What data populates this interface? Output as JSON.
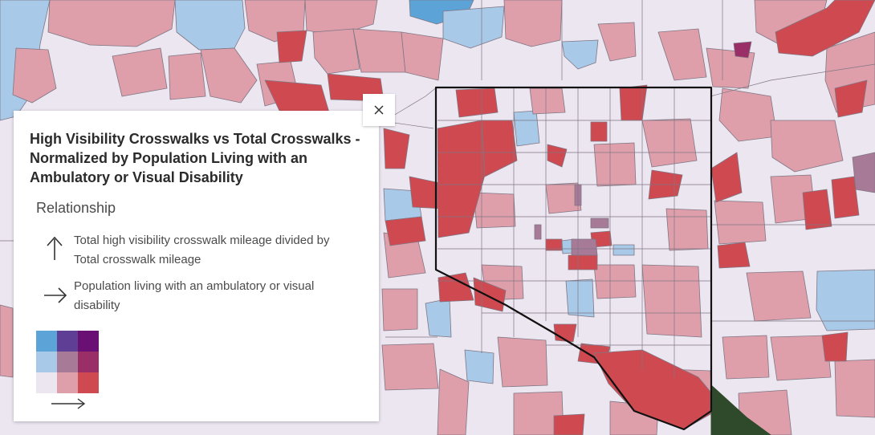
{
  "legend": {
    "title": "High Visibility Crosswalks vs Total Crosswalks - Normalized by Population Living with an Ambulatory or Visual Disability",
    "subtitle": "Relationship",
    "y_axis_text": "Total high visibility crosswalk mileage divided by Total crosswalk mileage",
    "x_axis_text": "Population living with an ambulatory or visual disability",
    "bivariate_colors": [
      [
        "#5ca4d8",
        "#5f3f96",
        "#6a0f73"
      ],
      [
        "#a8c9e8",
        "#a77a98",
        "#9a2e67"
      ],
      [
        "#ece6f1",
        "#de9fab",
        "#cf4a50"
      ]
    ]
  },
  "map": {
    "land_background": "#ece6f1",
    "water_color": "#a8c9e8",
    "city_boundary_color": "#111111"
  },
  "icons": {
    "close": "close-icon",
    "y_arrow": "arrow-up-icon",
    "x_arrow": "arrow-right-icon"
  }
}
